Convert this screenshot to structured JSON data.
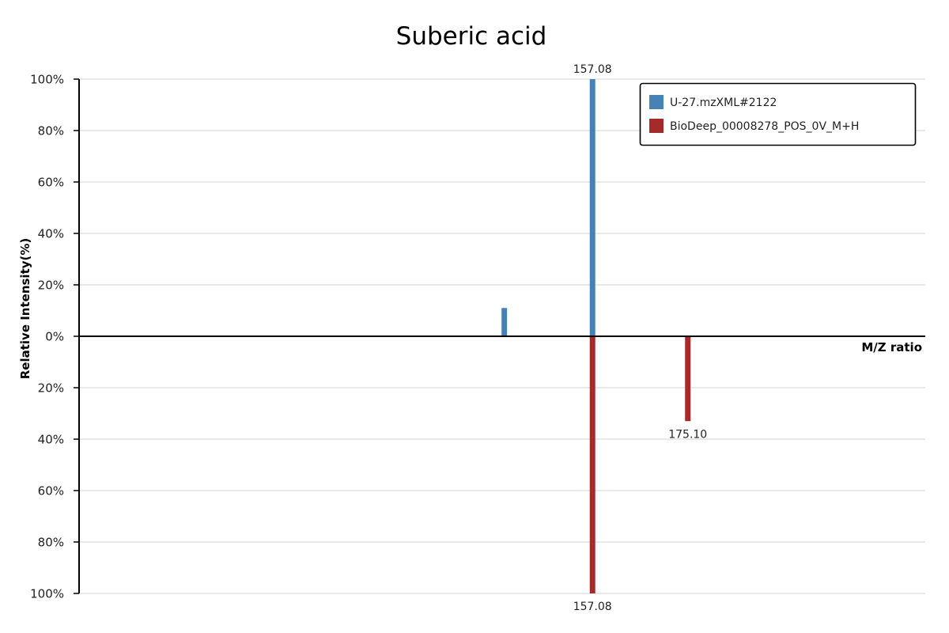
{
  "chart_data": {
    "type": "bar",
    "title": "Suberic acid",
    "ylabel": "Relative Intensity(%)",
    "xlabel": "M/Z ratio",
    "ylim": [
      -100,
      100
    ],
    "yticks": [
      100,
      80,
      60,
      40,
      20,
      0,
      -20,
      -40,
      -60,
      -80,
      -100
    ],
    "ytick_labels": [
      "100%",
      "80%",
      "60%",
      "40%",
      "20%",
      "0%",
      "20%",
      "40%",
      "60%",
      "80%",
      "100%"
    ],
    "xlim": [
      60,
      220
    ],
    "grid": true,
    "legend_position": "top-right",
    "series": [
      {
        "name": "U-27.mzXML#2122",
        "color": "#4682b4",
        "direction": "up",
        "peaks": [
          {
            "mz": 140.4,
            "intensity": 11,
            "label": ""
          },
          {
            "mz": 157.08,
            "intensity": 100,
            "label": "157.08"
          }
        ]
      },
      {
        "name": "BioDeep_00008278_POS_0V_M+H",
        "color": "#a52a2a",
        "direction": "down",
        "peaks": [
          {
            "mz": 157.08,
            "intensity": 100,
            "label": "157.08"
          },
          {
            "mz": 175.1,
            "intensity": 33,
            "label": "175.10"
          }
        ]
      }
    ]
  }
}
